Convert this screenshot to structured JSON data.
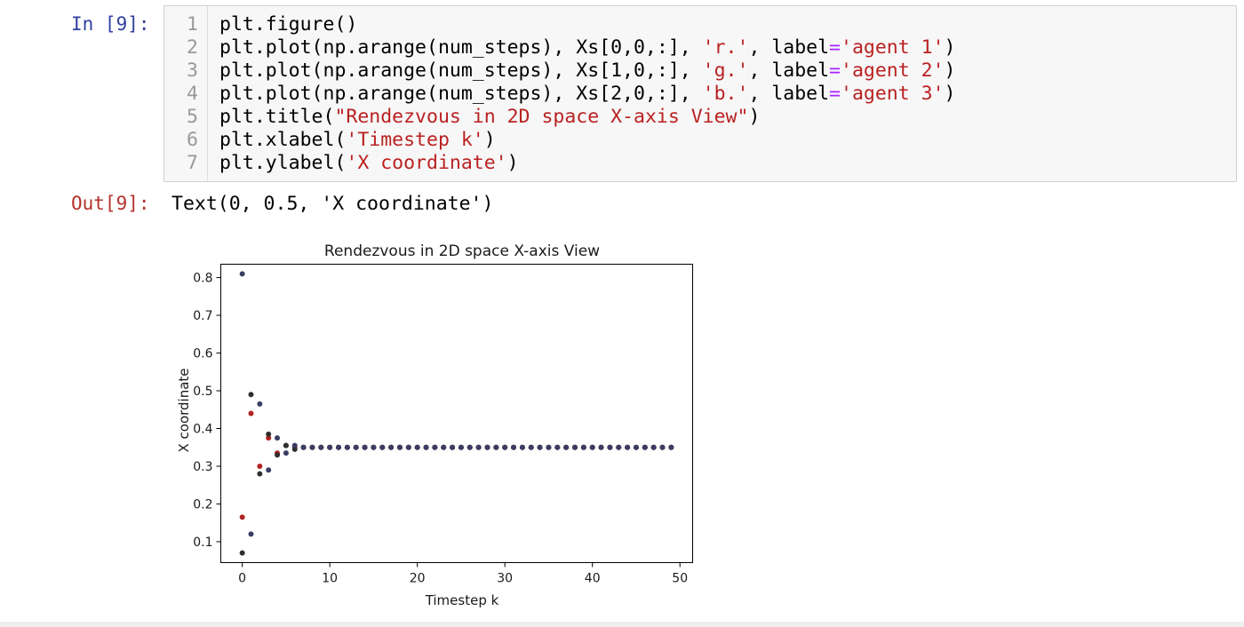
{
  "input_cell": {
    "prompt": "In [9]:",
    "lines": [
      {
        "num": "1",
        "parts": [
          {
            "t": "plt.figure()",
            "c": ""
          }
        ]
      },
      {
        "num": "2",
        "parts": [
          {
            "t": "plt.plot(np.arange(num_steps), Xs[0,0,:], ",
            "c": ""
          },
          {
            "t": "'r.'",
            "c": "str"
          },
          {
            "t": ", label",
            "c": ""
          },
          {
            "t": "=",
            "c": "op"
          },
          {
            "t": "'agent 1'",
            "c": "str"
          },
          {
            "t": ")",
            "c": ""
          }
        ]
      },
      {
        "num": "3",
        "parts": [
          {
            "t": "plt.plot(np.arange(num_steps), Xs[1,0,:], ",
            "c": ""
          },
          {
            "t": "'g.'",
            "c": "str"
          },
          {
            "t": ", label",
            "c": ""
          },
          {
            "t": "=",
            "c": "op"
          },
          {
            "t": "'agent 2'",
            "c": "str"
          },
          {
            "t": ")",
            "c": ""
          }
        ]
      },
      {
        "num": "4",
        "parts": [
          {
            "t": "plt.plot(np.arange(num_steps), Xs[2,0,:], ",
            "c": ""
          },
          {
            "t": "'b.'",
            "c": "str"
          },
          {
            "t": ", label",
            "c": ""
          },
          {
            "t": "=",
            "c": "op"
          },
          {
            "t": "'agent 3'",
            "c": "str"
          },
          {
            "t": ")",
            "c": ""
          }
        ]
      },
      {
        "num": "5",
        "parts": [
          {
            "t": "plt.title(",
            "c": ""
          },
          {
            "t": "\"Rendezvous in 2D space X-axis View\"",
            "c": "str"
          },
          {
            "t": ")",
            "c": ""
          }
        ]
      },
      {
        "num": "6",
        "parts": [
          {
            "t": "plt.xlabel(",
            "c": ""
          },
          {
            "t": "'Timestep k'",
            "c": "str"
          },
          {
            "t": ")",
            "c": ""
          }
        ]
      },
      {
        "num": "7",
        "parts": [
          {
            "t": "plt.ylabel(",
            "c": ""
          },
          {
            "t": "'X coordinate'",
            "c": "str"
          },
          {
            "t": ")",
            "c": ""
          }
        ]
      }
    ]
  },
  "output_cell": {
    "prompt": "Out[9]:",
    "text": "Text(0, 0.5, 'X coordinate')"
  },
  "colors": {
    "agent_1": "#b22222",
    "agent_2": "#2f2f2f",
    "agent_3": "#3a3d63",
    "in_prompt": "#303f9f",
    "out_prompt": "#b4312b",
    "string": "#ba2121"
  },
  "chart_data": {
    "type": "scatter",
    "title": "Rendezvous in 2D space X-axis View",
    "xlabel": "Timestep k",
    "ylabel": "X coordinate",
    "xlim": [
      -2.45,
      51.45
    ],
    "ylim": [
      0.0445,
      0.8355
    ],
    "xticks": [
      0,
      10,
      20,
      30,
      40,
      50
    ],
    "yticks": [
      0.1,
      0.2,
      0.3,
      0.4,
      0.5,
      0.6,
      0.7,
      0.8
    ],
    "grid": false,
    "converge_value": 0.35,
    "num_steps": 50,
    "series": [
      {
        "name": "agent 1",
        "color": "#b22222",
        "values": [
          0.165,
          0.44,
          0.3,
          0.375,
          0.335,
          0.355,
          0.35
        ]
      },
      {
        "name": "agent 2",
        "color": "#2f2f2f",
        "values": [
          0.07,
          0.49,
          0.28,
          0.385,
          0.33,
          0.355,
          0.345
        ]
      },
      {
        "name": "agent 3",
        "color": "#3a3d63",
        "values": [
          0.81,
          0.12,
          0.465,
          0.29,
          0.375,
          0.335,
          0.355
        ]
      }
    ]
  }
}
